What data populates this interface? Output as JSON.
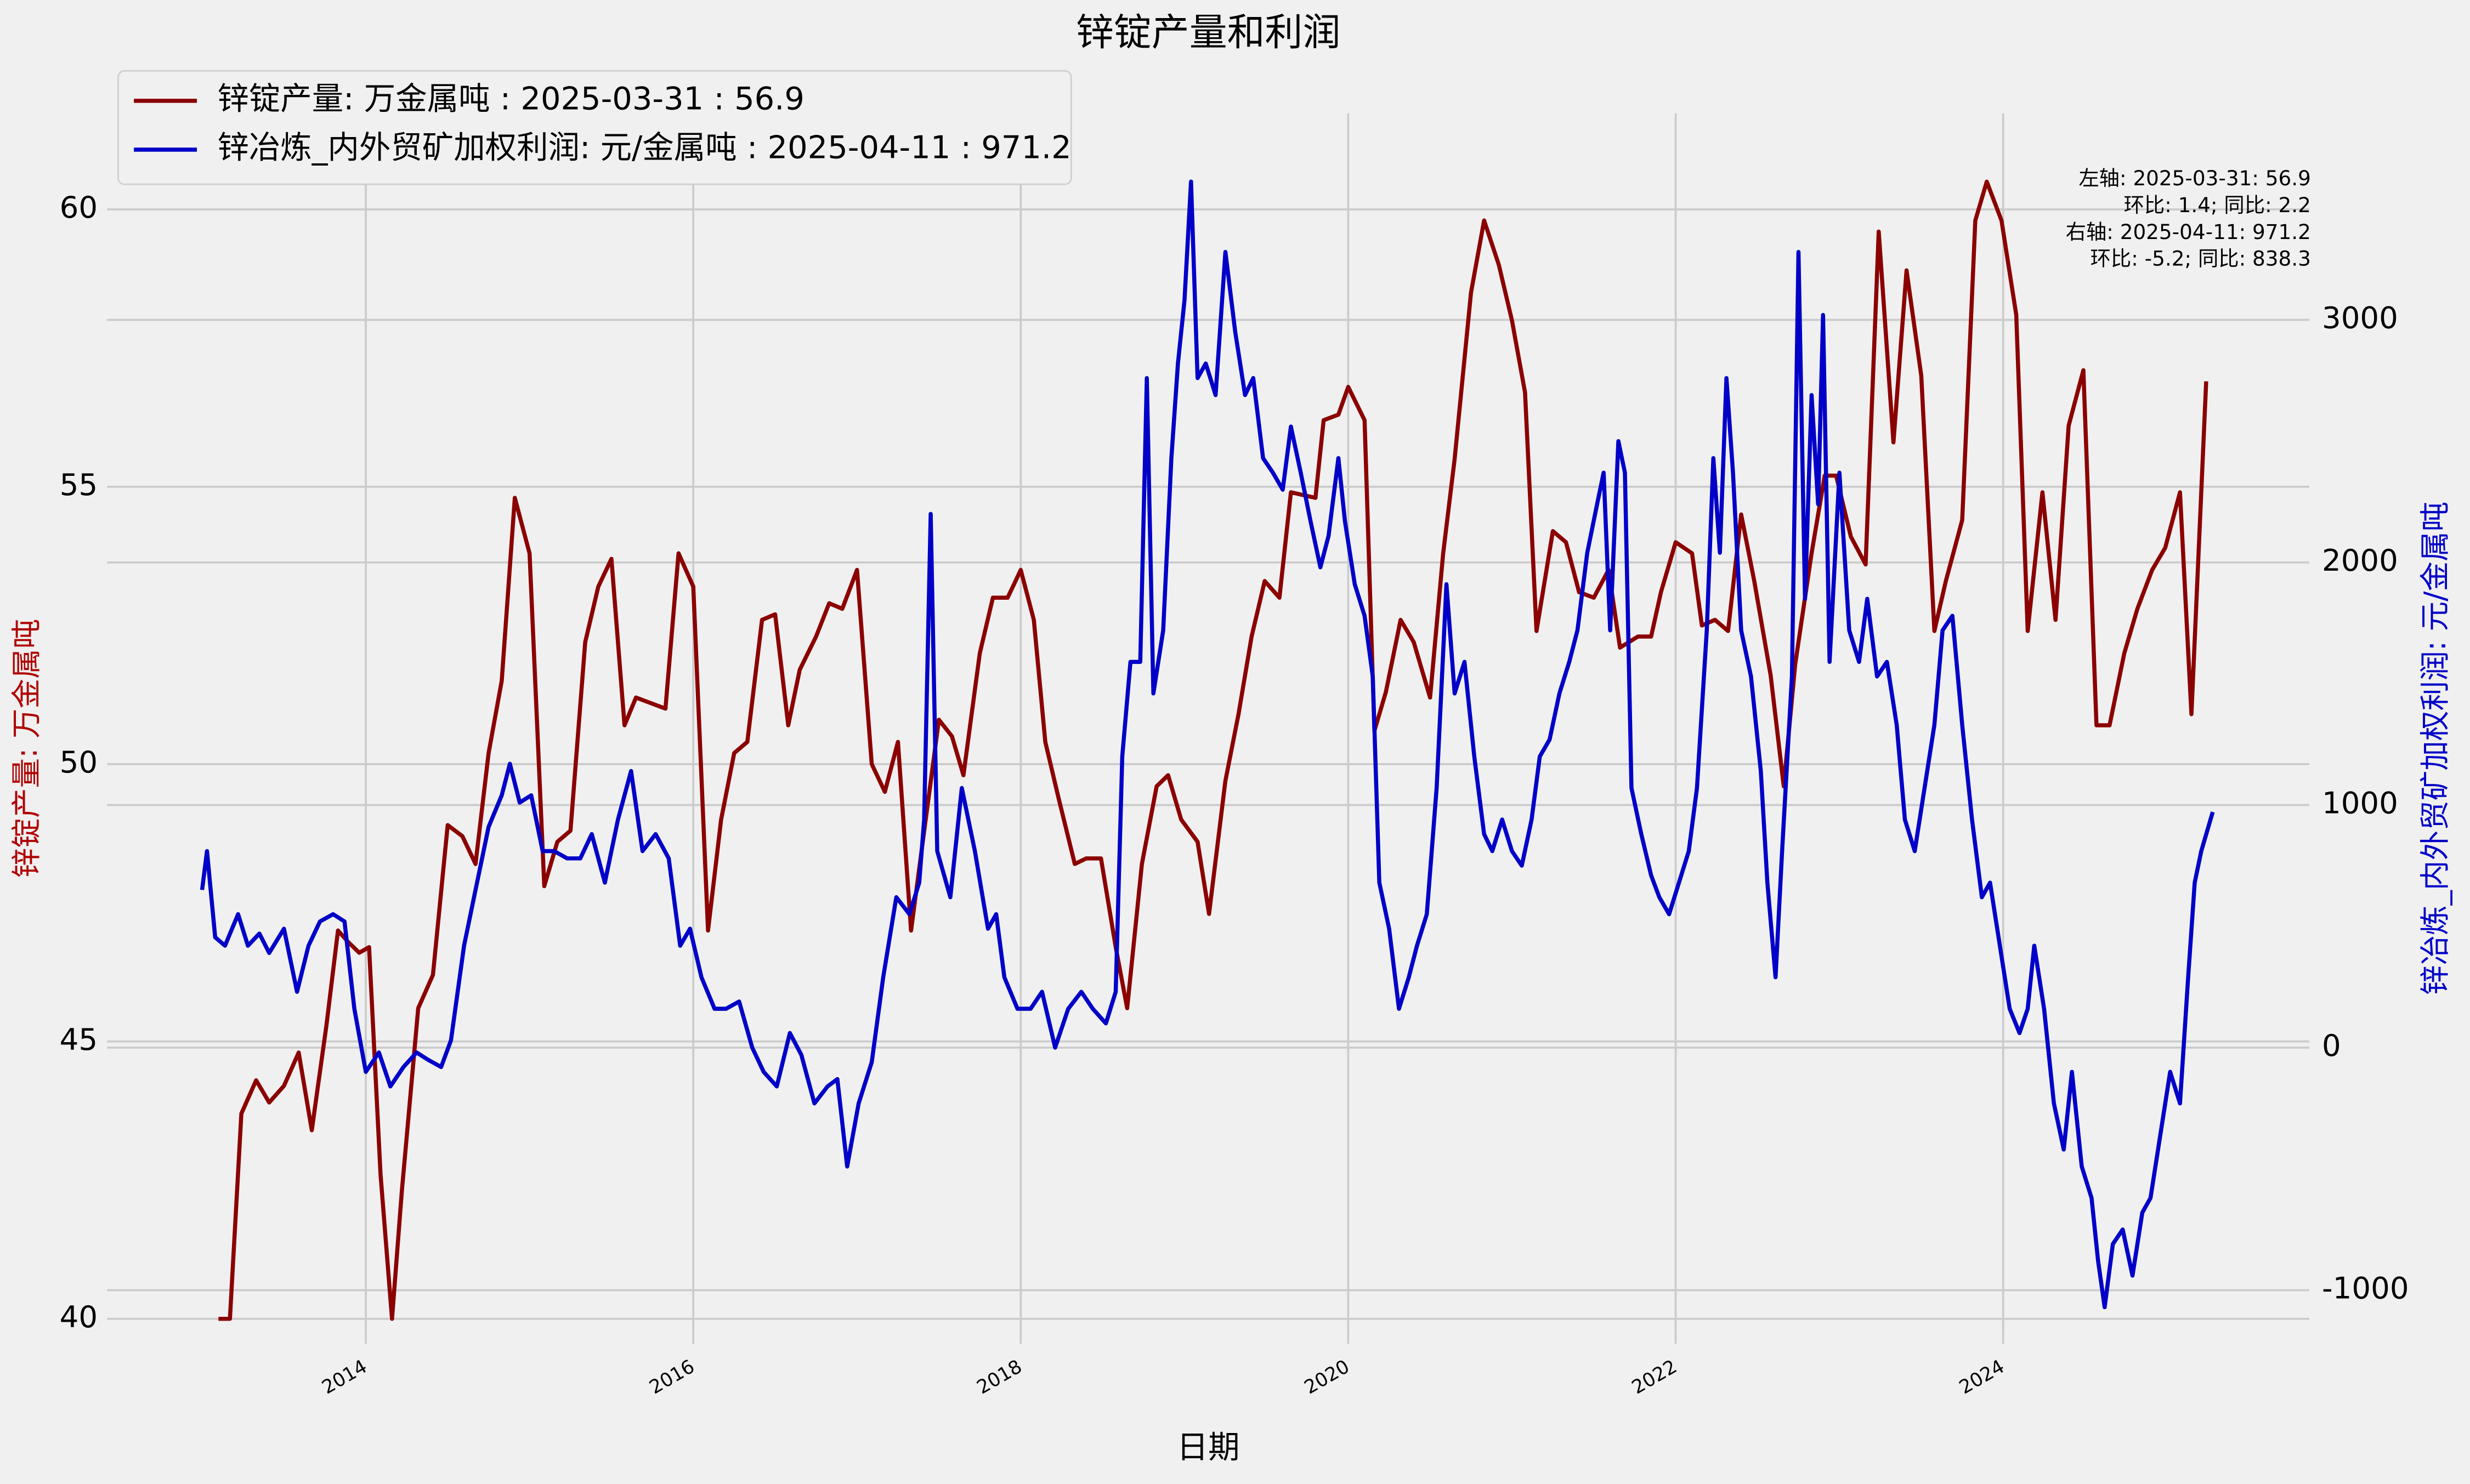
{
  "chart_data": {
    "type": "line",
    "title": "锌锭产量和利润",
    "xlabel": "日期",
    "ylabel": "锌锭产量: 万金属吨",
    "y2label": "锌冶炼_内外贸矿加权利润: 元/金属吨",
    "annotation": [
      "左轴:  2025-03-31: 56.9",
      "环比: 1.4; 同比: 2.2",
      "右轴:  2025-04-11: 971.2",
      "环比: -5.2; 同比: 838.3"
    ],
    "xlim": [
      2012.42,
      2025.87
    ],
    "xticks": [
      2014,
      2016,
      2018,
      2020,
      2022,
      2024
    ],
    "ylim": [
      39.55,
      61.73
    ],
    "yticks": [
      40,
      45,
      50,
      55,
      60
    ],
    "y2lim": [
      -1221,
      3851
    ],
    "y2ticks": [
      -1000,
      0,
      1000,
      2000,
      3000
    ],
    "grid": true,
    "legend": "upper left",
    "series": [
      {
        "name": "锌锭产量: 万金属吨 : 2025-03-31 : 56.9",
        "color": "#8b0000",
        "axis": "y",
        "x": [
          2013.1,
          2013.17,
          2013.24,
          2013.33,
          2013.41,
          2013.5,
          2013.59,
          2013.67,
          2013.76,
          2013.83,
          2013.89,
          2013.96,
          2014.02,
          2014.09,
          2014.16,
          2014.22,
          2014.32,
          2014.41,
          2014.5,
          2014.59,
          2014.67,
          2014.75,
          2014.83,
          2014.91,
          2015.0,
          2015.09,
          2015.17,
          2015.25,
          2015.34,
          2015.42,
          2015.5,
          2015.58,
          2015.65,
          2015.74,
          2015.83,
          2015.91,
          2016.0,
          2016.09,
          2016.17,
          2016.25,
          2016.33,
          2016.42,
          2016.5,
          2016.58,
          2016.65,
          2016.75,
          2016.83,
          2016.91,
          2017.0,
          2017.09,
          2017.17,
          2017.25,
          2017.33,
          2017.5,
          2017.58,
          2017.65,
          2017.75,
          2017.83,
          2017.92,
          2018.0,
          2018.08,
          2018.15,
          2018.23,
          2018.33,
          2018.4,
          2018.49,
          2018.58,
          2018.65,
          2018.74,
          2018.83,
          2018.9,
          2018.98,
          2019.08,
          2019.15,
          2019.25,
          2019.33,
          2019.41,
          2019.49,
          2019.58,
          2019.65,
          2019.8,
          2019.85,
          2019.94,
          2020.0,
          2020.1,
          2020.16,
          2020.23,
          2020.32,
          2020.4,
          2020.5,
          2020.58,
          2020.65,
          2020.75,
          2020.83,
          2020.92,
          2021.0,
          2021.08,
          2021.15,
          2021.25,
          2021.33,
          2021.41,
          2021.5,
          2021.59,
          2021.66,
          2021.77,
          2021.85,
          2021.91,
          2022.0,
          2022.1,
          2022.16,
          2022.24,
          2022.32,
          2022.4,
          2022.48,
          2022.58,
          2022.66,
          2022.73,
          2022.83,
          2022.91,
          2022.98,
          2023.07,
          2023.16,
          2023.24,
          2023.33,
          2023.41,
          2023.5,
          2023.58,
          2023.65,
          2023.75,
          2023.83,
          2023.9,
          2023.99,
          2024.08,
          2024.15,
          2024.24,
          2024.32,
          2024.4,
          2024.49,
          2024.57,
          2024.65,
          2024.74,
          2024.82,
          2024.91,
          2024.99,
          2025.08,
          2025.15,
          2025.24
        ],
        "values": [
          40.0,
          40.0,
          43.7,
          44.3,
          43.9,
          44.2,
          44.8,
          43.4,
          45.3,
          47.0,
          46.8,
          46.6,
          46.7,
          42.6,
          40.0,
          42.3,
          45.6,
          46.2,
          48.9,
          48.7,
          48.2,
          50.2,
          51.5,
          54.8,
          53.8,
          47.8,
          48.6,
          48.8,
          52.2,
          53.2,
          53.7,
          50.7,
          51.2,
          51.1,
          51.0,
          53.8,
          53.2,
          47.0,
          49.0,
          50.2,
          50.4,
          52.6,
          52.7,
          50.7,
          51.7,
          52.3,
          52.9,
          52.8,
          53.5,
          50.0,
          49.5,
          50.4,
          47.0,
          50.8,
          50.5,
          49.8,
          52.0,
          53.0,
          53.0,
          53.5,
          52.6,
          50.4,
          49.4,
          48.2,
          48.3,
          48.3,
          46.7,
          45.6,
          48.2,
          49.6,
          49.8,
          49.0,
          48.6,
          47.3,
          49.7,
          50.9,
          52.3,
          53.3,
          53.0,
          54.9,
          54.8,
          56.2,
          56.3,
          56.8,
          56.2,
          50.6,
          51.3,
          52.6,
          52.2,
          51.2,
          53.8,
          55.5,
          58.5,
          59.8,
          59.0,
          58.0,
          56.7,
          52.4,
          54.2,
          54.0,
          53.1,
          53.0,
          53.5,
          52.1,
          52.3,
          52.3,
          53.1,
          54.0,
          53.8,
          52.5,
          52.6,
          52.4,
          54.5,
          53.3,
          51.6,
          49.6,
          51.8,
          53.8,
          55.2,
          55.2,
          54.1,
          53.6,
          59.6,
          55.8,
          58.9,
          57.0,
          52.4,
          53.3,
          54.4,
          59.8,
          60.5,
          59.8,
          58.1,
          52.4,
          54.9,
          52.6,
          56.1,
          57.1,
          50.7,
          50.7,
          52.0,
          52.8,
          53.5,
          53.9,
          54.9,
          50.9,
          56.9
        ]
      },
      {
        "name": "锌冶炼_内外贸矿加权利润: 元/金属吨 : 2025-04-11 : 971.2",
        "color": "#0000c8",
        "axis": "y2",
        "x": [
          2013.0,
          2013.03,
          2013.08,
          2013.14,
          2013.22,
          2013.28,
          2013.35,
          2013.41,
          2013.5,
          2013.58,
          2013.65,
          2013.72,
          2013.8,
          2013.87,
          2013.93,
          2014.0,
          2014.08,
          2014.15,
          2014.23,
          2014.31,
          2014.38,
          2014.46,
          2014.52,
          2014.6,
          2014.67,
          2014.75,
          2014.83,
          2014.88,
          2014.94,
          2015.01,
          2015.08,
          2015.15,
          2015.23,
          2015.31,
          2015.38,
          2015.46,
          2015.54,
          2015.62,
          2015.69,
          2015.77,
          2015.85,
          2015.92,
          2015.98,
          2016.05,
          2016.13,
          2016.2,
          2016.28,
          2016.36,
          2016.43,
          2016.51,
          2016.59,
          2016.66,
          2016.74,
          2016.82,
          2016.88,
          2016.94,
          2017.01,
          2017.09,
          2017.16,
          2017.24,
          2017.32,
          2017.38,
          2017.41,
          2017.45,
          2017.49,
          2017.57,
          2017.64,
          2017.72,
          2017.8,
          2017.85,
          2017.9,
          2017.98,
          2018.06,
          2018.13,
          2018.21,
          2018.29,
          2018.37,
          2018.44,
          2018.52,
          2018.58,
          2018.62,
          2018.67,
          2018.73,
          2018.77,
          2018.81,
          2018.87,
          2018.92,
          2018.96,
          2019.0,
          2019.04,
          2019.08,
          2019.13,
          2019.19,
          2019.25,
          2019.31,
          2019.37,
          2019.42,
          2019.48,
          2019.54,
          2019.6,
          2019.65,
          2019.71,
          2019.77,
          2019.83,
          2019.88,
          2019.94,
          2019.98,
          2020.04,
          2020.1,
          2020.15,
          2020.19,
          2020.25,
          2020.31,
          2020.37,
          2020.42,
          2020.48,
          2020.54,
          2020.6,
          2020.65,
          2020.71,
          2020.77,
          2020.83,
          2020.88,
          2020.94,
          2021.0,
          2021.06,
          2021.12,
          2021.17,
          2021.23,
          2021.29,
          2021.35,
          2021.4,
          2021.46,
          2021.52,
          2021.56,
          2021.6,
          2021.65,
          2021.69,
          2021.73,
          2021.79,
          2021.85,
          2021.9,
          2021.96,
          2022.02,
          2022.08,
          2022.13,
          2022.19,
          2022.23,
          2022.27,
          2022.31,
          2022.35,
          2022.4,
          2022.46,
          2022.52,
          2022.56,
          2022.61,
          2022.65,
          2022.71,
          2022.75,
          2022.79,
          2022.83,
          2022.87,
          2022.9,
          2022.94,
          2023.0,
          2023.06,
          2023.12,
          2023.17,
          2023.23,
          2023.29,
          2023.35,
          2023.4,
          2023.46,
          2023.52,
          2023.58,
          2023.63,
          2023.69,
          2023.75,
          2023.81,
          2023.87,
          2023.92,
          2023.98,
          2024.04,
          2024.1,
          2024.15,
          2024.19,
          2024.25,
          2024.31,
          2024.37,
          2024.42,
          2024.48,
          2024.54,
          2024.58,
          2024.62,
          2024.67,
          2024.73,
          2024.79,
          2024.85,
          2024.9,
          2024.96,
          2025.02,
          2025.08,
          2025.13,
          2025.17,
          2025.21,
          2025.28
        ],
        "values": [
          650,
          810,
          455,
          420,
          550,
          420,
          470,
          390,
          490,
          230,
          420,
          520,
          550,
          520,
          160,
          -100,
          -20,
          -160,
          -80,
          -20,
          -50,
          -80,
          30,
          420,
          650,
          910,
          1040,
          1170,
          1010,
          1040,
          810,
          810,
          780,
          780,
          880,
          680,
          940,
          1140,
          810,
          880,
          780,
          420,
          490,
          290,
          160,
          160,
          190,
          0,
          -100,
          -160,
          60,
          -30,
          -230,
          -160,
          -130,
          -490,
          -230,
          -60,
          290,
          620,
          550,
          680,
          940,
          2200,
          810,
          620,
          1070,
          810,
          490,
          550,
          290,
          160,
          160,
          230,
          0,
          160,
          230,
          160,
          100,
          230,
          1200,
          1590,
          1590,
          2760,
          1460,
          1720,
          2430,
          2820,
          3080,
          3570,
          2760,
          2820,
          2690,
          3280,
          2950,
          2690,
          2760,
          2430,
          2370,
          2300,
          2560,
          2370,
          2170,
          1980,
          2110,
          2430,
          2170,
          1910,
          1780,
          1530,
          680,
          490,
          160,
          290,
          420,
          550,
          1070,
          1910,
          1460,
          1590,
          1200,
          880,
          810,
          940,
          810,
          750,
          940,
          1200,
          1270,
          1460,
          1590,
          1720,
          2040,
          2240,
          2370,
          1720,
          2500,
          2370,
          1070,
          880,
          710,
          620,
          550,
          680,
          810,
          1070,
          1720,
          2430,
          2040,
          2760,
          2370,
          1720,
          1530,
          1140,
          680,
          290,
          810,
          1530,
          3280,
          1850,
          2690,
          2240,
          3020,
          1590,
          2370,
          1720,
          1590,
          1850,
          1530,
          1590,
          1330,
          940,
          810,
          1070,
          1330,
          1720,
          1780,
          1330,
          940,
          620,
          680,
          420,
          160,
          60,
          160,
          420,
          160,
          -230,
          -420,
          -100,
          -490,
          -620,
          -880,
          -1070,
          -810,
          -750,
          -940,
          -680,
          -620,
          -360,
          -100,
          -230,
          290,
          680,
          810,
          971.2
        ]
      }
    ]
  }
}
